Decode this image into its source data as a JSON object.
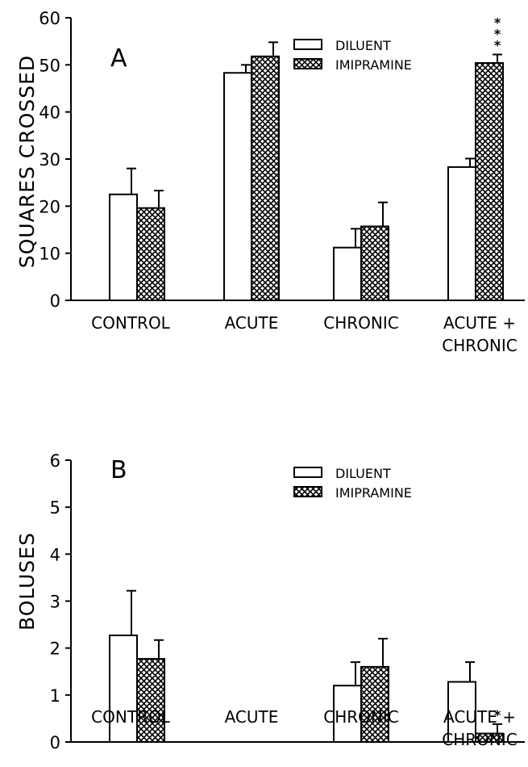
{
  "chart_data": [
    {
      "type": "bar",
      "panel_label": "A",
      "ylabel": "SQUARES CROSSED",
      "xlabel": "",
      "ylim": [
        0,
        60
      ],
      "yticks": [
        0,
        10,
        20,
        30,
        40,
        50,
        60
      ],
      "categories": [
        [
          "CONTROL"
        ],
        [
          "ACUTE"
        ],
        [
          "CHRONIC"
        ],
        [
          "ACUTE +",
          "CHRONIC"
        ]
      ],
      "legend": {
        "placement": "top-center",
        "entries": [
          "DILUENT",
          "IMIPRAMINE"
        ]
      },
      "series": [
        {
          "name": "DILUENT",
          "pattern": "open",
          "values": [
            22.5,
            48.3,
            11.2,
            28.3
          ],
          "errors": [
            5.5,
            1.7,
            4.0,
            1.8
          ]
        },
        {
          "name": "IMIPRAMINE",
          "pattern": "crosshatch",
          "values": [
            19.6,
            51.8,
            15.7,
            50.4
          ],
          "errors": [
            3.7,
            3.0,
            5.1,
            1.8
          ]
        }
      ],
      "annotations": [
        {
          "category_index": 3,
          "series_index": 1,
          "text": "*",
          "count": 3
        }
      ]
    },
    {
      "type": "bar",
      "panel_label": "B",
      "ylabel": "BOLUSES",
      "xlabel": "",
      "ylim": [
        0,
        6
      ],
      "yticks": [
        0,
        1,
        2,
        3,
        4,
        5,
        6
      ],
      "categories": [
        [
          "CONTROL"
        ],
        [
          "ACUTE"
        ],
        [
          "CHRONIC"
        ],
        [
          "ACUTE +",
          "CHRONIC"
        ]
      ],
      "legend": {
        "placement": "top-center",
        "entries": [
          "DILUENT",
          "IMIPRAMINE"
        ]
      },
      "series": [
        {
          "name": "DILUENT",
          "pattern": "open",
          "values": [
            2.27,
            0,
            1.2,
            1.28
          ],
          "errors": [
            0.95,
            0,
            0.5,
            0.42
          ]
        },
        {
          "name": "IMIPRAMINE",
          "pattern": "crosshatch",
          "values": [
            1.77,
            0,
            1.6,
            0.18
          ],
          "errors": [
            0.4,
            0,
            0.6,
            0.2
          ]
        }
      ],
      "annotations": [
        {
          "category_index": 3,
          "series_index": 1,
          "text": "*",
          "count": 1
        }
      ]
    }
  ]
}
